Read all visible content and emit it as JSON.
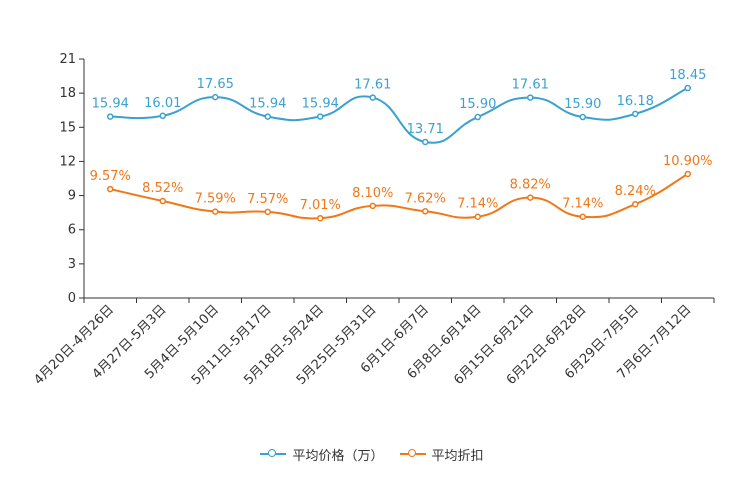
{
  "chart_data": {
    "type": "line",
    "title": "",
    "xlabel": "",
    "ylabel": "",
    "ylim": [
      0,
      21
    ],
    "yticks": [
      0,
      3,
      6,
      9,
      12,
      15,
      18,
      21
    ],
    "categories": [
      "4月20日-4月26日",
      "4月27日-5月3日",
      "5月4日-5月10日",
      "5月11日-5月17日",
      "5月18日-5月24日",
      "5月25日-5月31日",
      "6月1日-6月7日",
      "6月8日-6月14日",
      "6月15日-6月21日",
      "6月22日-6月28日",
      "6月29日-7月5日",
      "7月6日-7月12日"
    ],
    "series": [
      {
        "name": "平均价格（万）",
        "color": "#3ba1d0",
        "values": [
          15.94,
          16.01,
          17.65,
          15.94,
          15.94,
          17.61,
          13.71,
          15.9,
          17.61,
          15.9,
          16.18,
          18.45
        ],
        "labels": [
          "15.94",
          "16.01",
          "17.65",
          "15.94",
          "15.94",
          "17.61",
          "13.71",
          "15.90",
          "17.61",
          "15.90",
          "16.18",
          "18.45"
        ]
      },
      {
        "name": "平均折扣",
        "color": "#f07818",
        "values": [
          9.57,
          8.52,
          7.59,
          7.57,
          7.01,
          8.1,
          7.62,
          7.14,
          8.82,
          7.14,
          8.24,
          10.9
        ],
        "labels": [
          "9.57%",
          "8.52%",
          "7.59%",
          "7.57%",
          "7.01%",
          "8.10%",
          "7.62%",
          "7.14%",
          "8.82%",
          "7.14%",
          "8.24%",
          "10.90%"
        ]
      }
    ],
    "legend_position": "bottom-center"
  }
}
